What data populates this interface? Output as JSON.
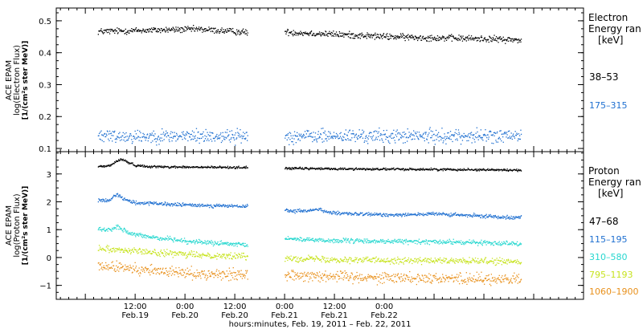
{
  "chart_data": [
    {
      "type": "scatter",
      "panel": "electron",
      "ylabel_lines": [
        "ACE EPAM",
        "log(Electron Flux)",
        "[1/(cm²s ster MeV)]"
      ],
      "ylim": [
        0.09,
        0.54
      ],
      "yticks": [
        0.1,
        0.2,
        0.3,
        0.4,
        0.5
      ],
      "ytick_labels": [
        "0.1",
        "0.2",
        "0.3",
        "0.4",
        "0.5"
      ],
      "legend_title_lines": [
        "Electron",
        "Energy ran",
        "[keV]"
      ],
      "series": [
        {
          "name": "38–53",
          "color": "#000000",
          "segments": [
            {
              "x": [
                3,
                16,
                27,
                39
              ],
              "y": [
                0.468,
                0.472,
                0.475,
                0.465
              ]
            },
            {
              "x": [
                48,
                60,
                72,
                84,
                96,
                105
              ],
              "y": [
                0.466,
                0.459,
                0.452,
                0.448,
                0.445,
                0.441
              ]
            }
          ],
          "noise": 0.006
        },
        {
          "name": "175–315",
          "color": "#1e6fd0",
          "segments": [
            {
              "x": [
                3,
                20,
                39
              ],
              "y": [
                0.14,
                0.14,
                0.14
              ]
            },
            {
              "x": [
                48,
                76,
                105
              ],
              "y": [
                0.14,
                0.14,
                0.14
              ]
            }
          ],
          "noise": 0.013
        }
      ]
    },
    {
      "type": "scatter",
      "panel": "proton",
      "ylabel_lines": [
        "ACE EPAM",
        "log(Proton Flux)",
        "[1/(cm²s ster MeV)]"
      ],
      "ylim": [
        -1.5,
        3.8
      ],
      "yticks": [
        -1,
        0,
        1,
        2,
        3
      ],
      "ytick_labels": [
        "−1",
        "0",
        "1",
        "2",
        "3"
      ],
      "legend_title_lines": [
        "Proton",
        "Energy ran",
        "[keV]"
      ],
      "series": [
        {
          "name": "47–68",
          "color": "#000000",
          "segments": [
            {
              "x": [
                3,
                6,
                7.5,
                8.5,
                10,
                12,
                16,
                25,
                39
              ],
              "y": [
                3.28,
                3.32,
                3.48,
                3.55,
                3.45,
                3.32,
                3.28,
                3.26,
                3.25
              ]
            },
            {
              "x": [
                48,
                60,
                72,
                84,
                96,
                105
              ],
              "y": [
                3.22,
                3.2,
                3.19,
                3.18,
                3.17,
                3.15
              ]
            }
          ],
          "noise": 0.025
        },
        {
          "name": "115–195",
          "color": "#1e6fd0",
          "segments": [
            {
              "x": [
                3,
                6,
                7.5,
                9,
                11,
                16,
                25,
                39
              ],
              "y": [
                2.05,
                2.1,
                2.3,
                2.15,
                2.0,
                1.95,
                1.9,
                1.85
              ]
            },
            {
              "x": [
                48,
                52,
                56,
                60,
                72,
                84,
                96,
                105
              ],
              "y": [
                1.7,
                1.68,
                1.75,
                1.6,
                1.55,
                1.58,
                1.5,
                1.45
              ]
            }
          ],
          "noise": 0.04
        },
        {
          "name": "310–580",
          "color": "#27d7cf",
          "segments": [
            {
              "x": [
                3,
                6,
                7.5,
                9,
                11,
                16,
                25,
                39
              ],
              "y": [
                1.05,
                1.0,
                1.15,
                1.0,
                0.85,
                0.75,
                0.6,
                0.45
              ]
            },
            {
              "x": [
                48,
                60,
                72,
                84,
                96,
                105
              ],
              "y": [
                0.7,
                0.62,
                0.6,
                0.58,
                0.55,
                0.52
              ]
            }
          ],
          "noise": 0.05
        },
        {
          "name": "795–1193",
          "color": "#c7e31f",
          "segments": [
            {
              "x": [
                3,
                8,
                16,
                25,
                39
              ],
              "y": [
                0.35,
                0.3,
                0.2,
                0.12,
                0.05
              ]
            },
            {
              "x": [
                48,
                60,
                72,
                84,
                96,
                105
              ],
              "y": [
                0.0,
                -0.05,
                -0.08,
                -0.1,
                -0.12,
                -0.15
              ]
            }
          ],
          "noise": 0.07
        },
        {
          "name": "1060–1900",
          "color": "#e8901b",
          "segments": [
            {
              "x": [
                3,
                8,
                16,
                25,
                39
              ],
              "y": [
                -0.3,
                -0.35,
                -0.45,
                -0.55,
                -0.6
              ]
            },
            {
              "x": [
                48,
                60,
                72,
                84,
                96,
                105
              ],
              "y": [
                -0.6,
                -0.65,
                -0.7,
                -0.72,
                -0.75,
                -0.78
              ]
            }
          ],
          "noise": 0.12
        }
      ]
    }
  ],
  "x_axis": {
    "x_unit": "hours since 00:00 Feb 19, 2011",
    "xlim": [
      -7,
      120
    ],
    "major_ticks": [
      {
        "x": 12,
        "line1": "12:00",
        "line2": "Feb.19"
      },
      {
        "x": 24,
        "line1": "0:00",
        "line2": "Feb.20"
      },
      {
        "x": 36,
        "line1": "12:00",
        "line2": "Feb.20"
      },
      {
        "x": 48,
        "line1": "0:00",
        "line2": "Feb.21"
      },
      {
        "x": 60,
        "line1": "12:00",
        "line2": "Feb.21"
      },
      {
        "x": 72,
        "line1": "0:00",
        "line2": "Feb.22"
      }
    ],
    "xlabel": "hours:minutes, Feb. 19, 2011 – Feb. 22, 2011"
  }
}
